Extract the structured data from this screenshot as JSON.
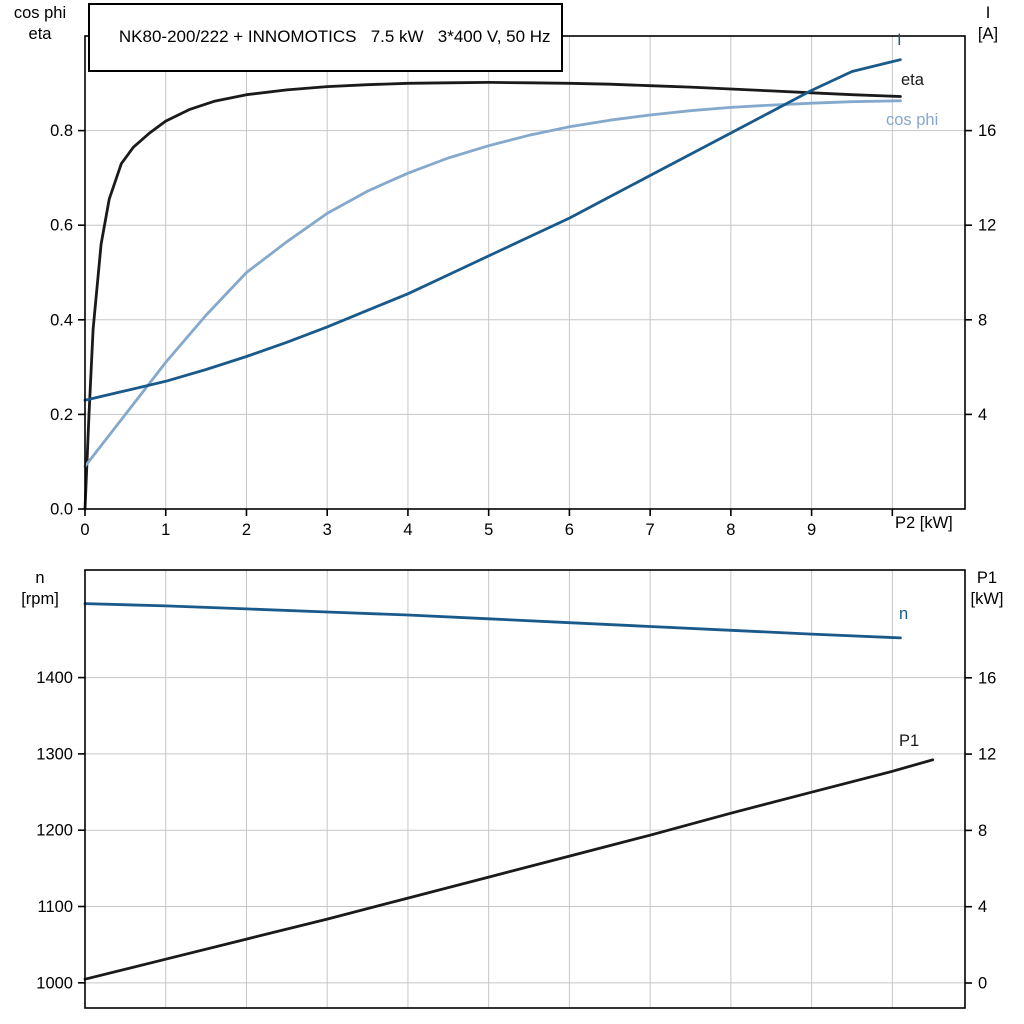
{
  "title": "NK80-200/222 + INNOMOTICS   7.5 kW   3*400 V, 50 Hz",
  "colors": {
    "black": "#1a1a1a",
    "dark_blue": "#1a5a8a",
    "light_blue": "#84a9cc",
    "grid": "#c6c6c6",
    "frame": "#000000",
    "text": "#000000"
  },
  "axis_corner_labels": {
    "top_left_line1": "cos phi",
    "top_left_line2": "eta",
    "top_right_line1": "I",
    "top_right_line2": "[A]",
    "bottom_left_line1": "n",
    "bottom_left_line2": "[rpm]",
    "bottom_right_line1": "P1",
    "bottom_right_line2": "[kW]"
  },
  "curve_labels": {
    "current": "I",
    "eta": "eta",
    "cos_phi": "cos phi",
    "speed": "n",
    "p1": "P1"
  },
  "x_axis_label": "P2 [kW]",
  "chart_data": [
    {
      "type": "line",
      "title": "NK80-200/222 + INNOMOTICS   7.5 kW   3*400 V, 50 Hz",
      "xlabel": "P2 [kW]",
      "ylabel_left": "cos phi / eta",
      "ylabel_right": "I [A]",
      "xlim": [
        0,
        10.9
      ],
      "ylim_left": [
        0,
        1.0
      ],
      "ylim_right": [
        0,
        20
      ],
      "grid": true,
      "x_grid": [
        1,
        2,
        3,
        4,
        5,
        6,
        7,
        8,
        9,
        10
      ],
      "x_tick_marks": [
        10
      ],
      "x_ticks": [
        {
          "v": 0,
          "label": "0"
        },
        {
          "v": 1,
          "label": "1"
        },
        {
          "v": 2,
          "label": "2"
        },
        {
          "v": 3,
          "label": "3"
        },
        {
          "v": 4,
          "label": "4"
        },
        {
          "v": 5,
          "label": "5"
        },
        {
          "v": 6,
          "label": "6"
        },
        {
          "v": 7,
          "label": "7"
        },
        {
          "v": 8,
          "label": "8"
        },
        {
          "v": 9,
          "label": "9"
        }
      ],
      "y_ticks_left": [
        {
          "v": 0.0,
          "label": "0.0"
        },
        {
          "v": 0.2,
          "label": "0.2"
        },
        {
          "v": 0.4,
          "label": "0.4"
        },
        {
          "v": 0.6,
          "label": "0.6"
        },
        {
          "v": 0.8,
          "label": "0.8"
        }
      ],
      "y_ticks_right": [
        {
          "v": 4,
          "label": "4"
        },
        {
          "v": 8,
          "label": "8"
        },
        {
          "v": 12,
          "label": "12"
        },
        {
          "v": 16,
          "label": "16"
        }
      ],
      "series": [
        {
          "name": "eta",
          "axis": "left",
          "color": "black",
          "x": [
            0,
            0.05,
            0.1,
            0.2,
            0.3,
            0.45,
            0.6,
            0.8,
            1.0,
            1.3,
            1.6,
            2.0,
            2.5,
            3.0,
            3.5,
            4.0,
            4.5,
            5.0,
            5.5,
            6.0,
            6.5,
            7.0,
            7.5,
            8.0,
            8.5,
            9.0,
            9.5,
            10.1
          ],
          "y": [
            0,
            0.2,
            0.38,
            0.56,
            0.655,
            0.73,
            0.765,
            0.795,
            0.82,
            0.845,
            0.862,
            0.876,
            0.886,
            0.893,
            0.897,
            0.9,
            0.901,
            0.902,
            0.901,
            0.9,
            0.898,
            0.895,
            0.892,
            0.888,
            0.884,
            0.88,
            0.876,
            0.872
          ]
        },
        {
          "name": "cos phi",
          "axis": "left",
          "color": "light_blue",
          "x": [
            0,
            0.25,
            0.5,
            0.75,
            1.0,
            1.5,
            2.0,
            2.5,
            3.0,
            3.5,
            4.0,
            4.5,
            5.0,
            5.5,
            6.0,
            6.5,
            7.0,
            7.5,
            8.0,
            8.5,
            9.0,
            9.5,
            10.1
          ],
          "y": [
            0.09,
            0.145,
            0.2,
            0.255,
            0.31,
            0.41,
            0.5,
            0.565,
            0.625,
            0.672,
            0.71,
            0.742,
            0.768,
            0.79,
            0.808,
            0.822,
            0.833,
            0.842,
            0.849,
            0.854,
            0.858,
            0.861,
            0.863
          ]
        },
        {
          "name": "I",
          "axis": "right",
          "color": "dark_blue",
          "x": [
            0,
            0.5,
            1,
            1.5,
            2,
            2.5,
            3,
            3.5,
            4,
            4.5,
            5,
            5.5,
            6,
            6.5,
            7,
            7.5,
            8,
            8.5,
            9,
            9.5,
            10.1
          ],
          "y": [
            4.6,
            5.0,
            5.4,
            5.9,
            6.45,
            7.05,
            7.7,
            8.4,
            9.1,
            9.9,
            10.7,
            11.5,
            12.3,
            13.2,
            14.1,
            15.0,
            15.9,
            16.8,
            17.7,
            18.5,
            19.0
          ]
        }
      ]
    },
    {
      "type": "line",
      "title": "",
      "xlabel": "",
      "ylabel_left": "n [rpm]",
      "ylabel_right": "P1 [kW]",
      "xlim": [
        0,
        10.9
      ],
      "ylim_left": [
        967,
        1541
      ],
      "ylim_right": [
        -1.31,
        21.65
      ],
      "grid": true,
      "x_grid": [
        1,
        2,
        3,
        4,
        5,
        6,
        7,
        8,
        9,
        10
      ],
      "x_tick_marks": [],
      "x_ticks": [],
      "y_ticks_left": [
        {
          "v": 1000,
          "label": "1000"
        },
        {
          "v": 1100,
          "label": "1100"
        },
        {
          "v": 1200,
          "label": "1200"
        },
        {
          "v": 1300,
          "label": "1300"
        },
        {
          "v": 1400,
          "label": "1400"
        }
      ],
      "y_ticks_right": [
        {
          "v": 0,
          "label": "0"
        },
        {
          "v": 4,
          "label": "4"
        },
        {
          "v": 8,
          "label": "8"
        },
        {
          "v": 12,
          "label": "12"
        },
        {
          "v": 16,
          "label": "16"
        }
      ],
      "series": [
        {
          "name": "n",
          "axis": "left",
          "color": "dark_blue",
          "x": [
            0,
            1,
            2,
            3,
            4,
            5,
            6,
            7,
            8,
            9,
            10.1
          ],
          "y": [
            1497,
            1494,
            1490,
            1486,
            1482,
            1477,
            1472,
            1467,
            1462,
            1457,
            1452
          ]
        },
        {
          "name": "P1",
          "axis": "right",
          "color": "black",
          "x": [
            0,
            1,
            2,
            3,
            4,
            5,
            6,
            7,
            8,
            9,
            10,
            10.5
          ],
          "y": [
            0.2,
            1.25,
            2.3,
            3.35,
            4.45,
            5.55,
            6.65,
            7.75,
            8.9,
            10.0,
            11.1,
            11.7
          ]
        }
      ]
    }
  ]
}
